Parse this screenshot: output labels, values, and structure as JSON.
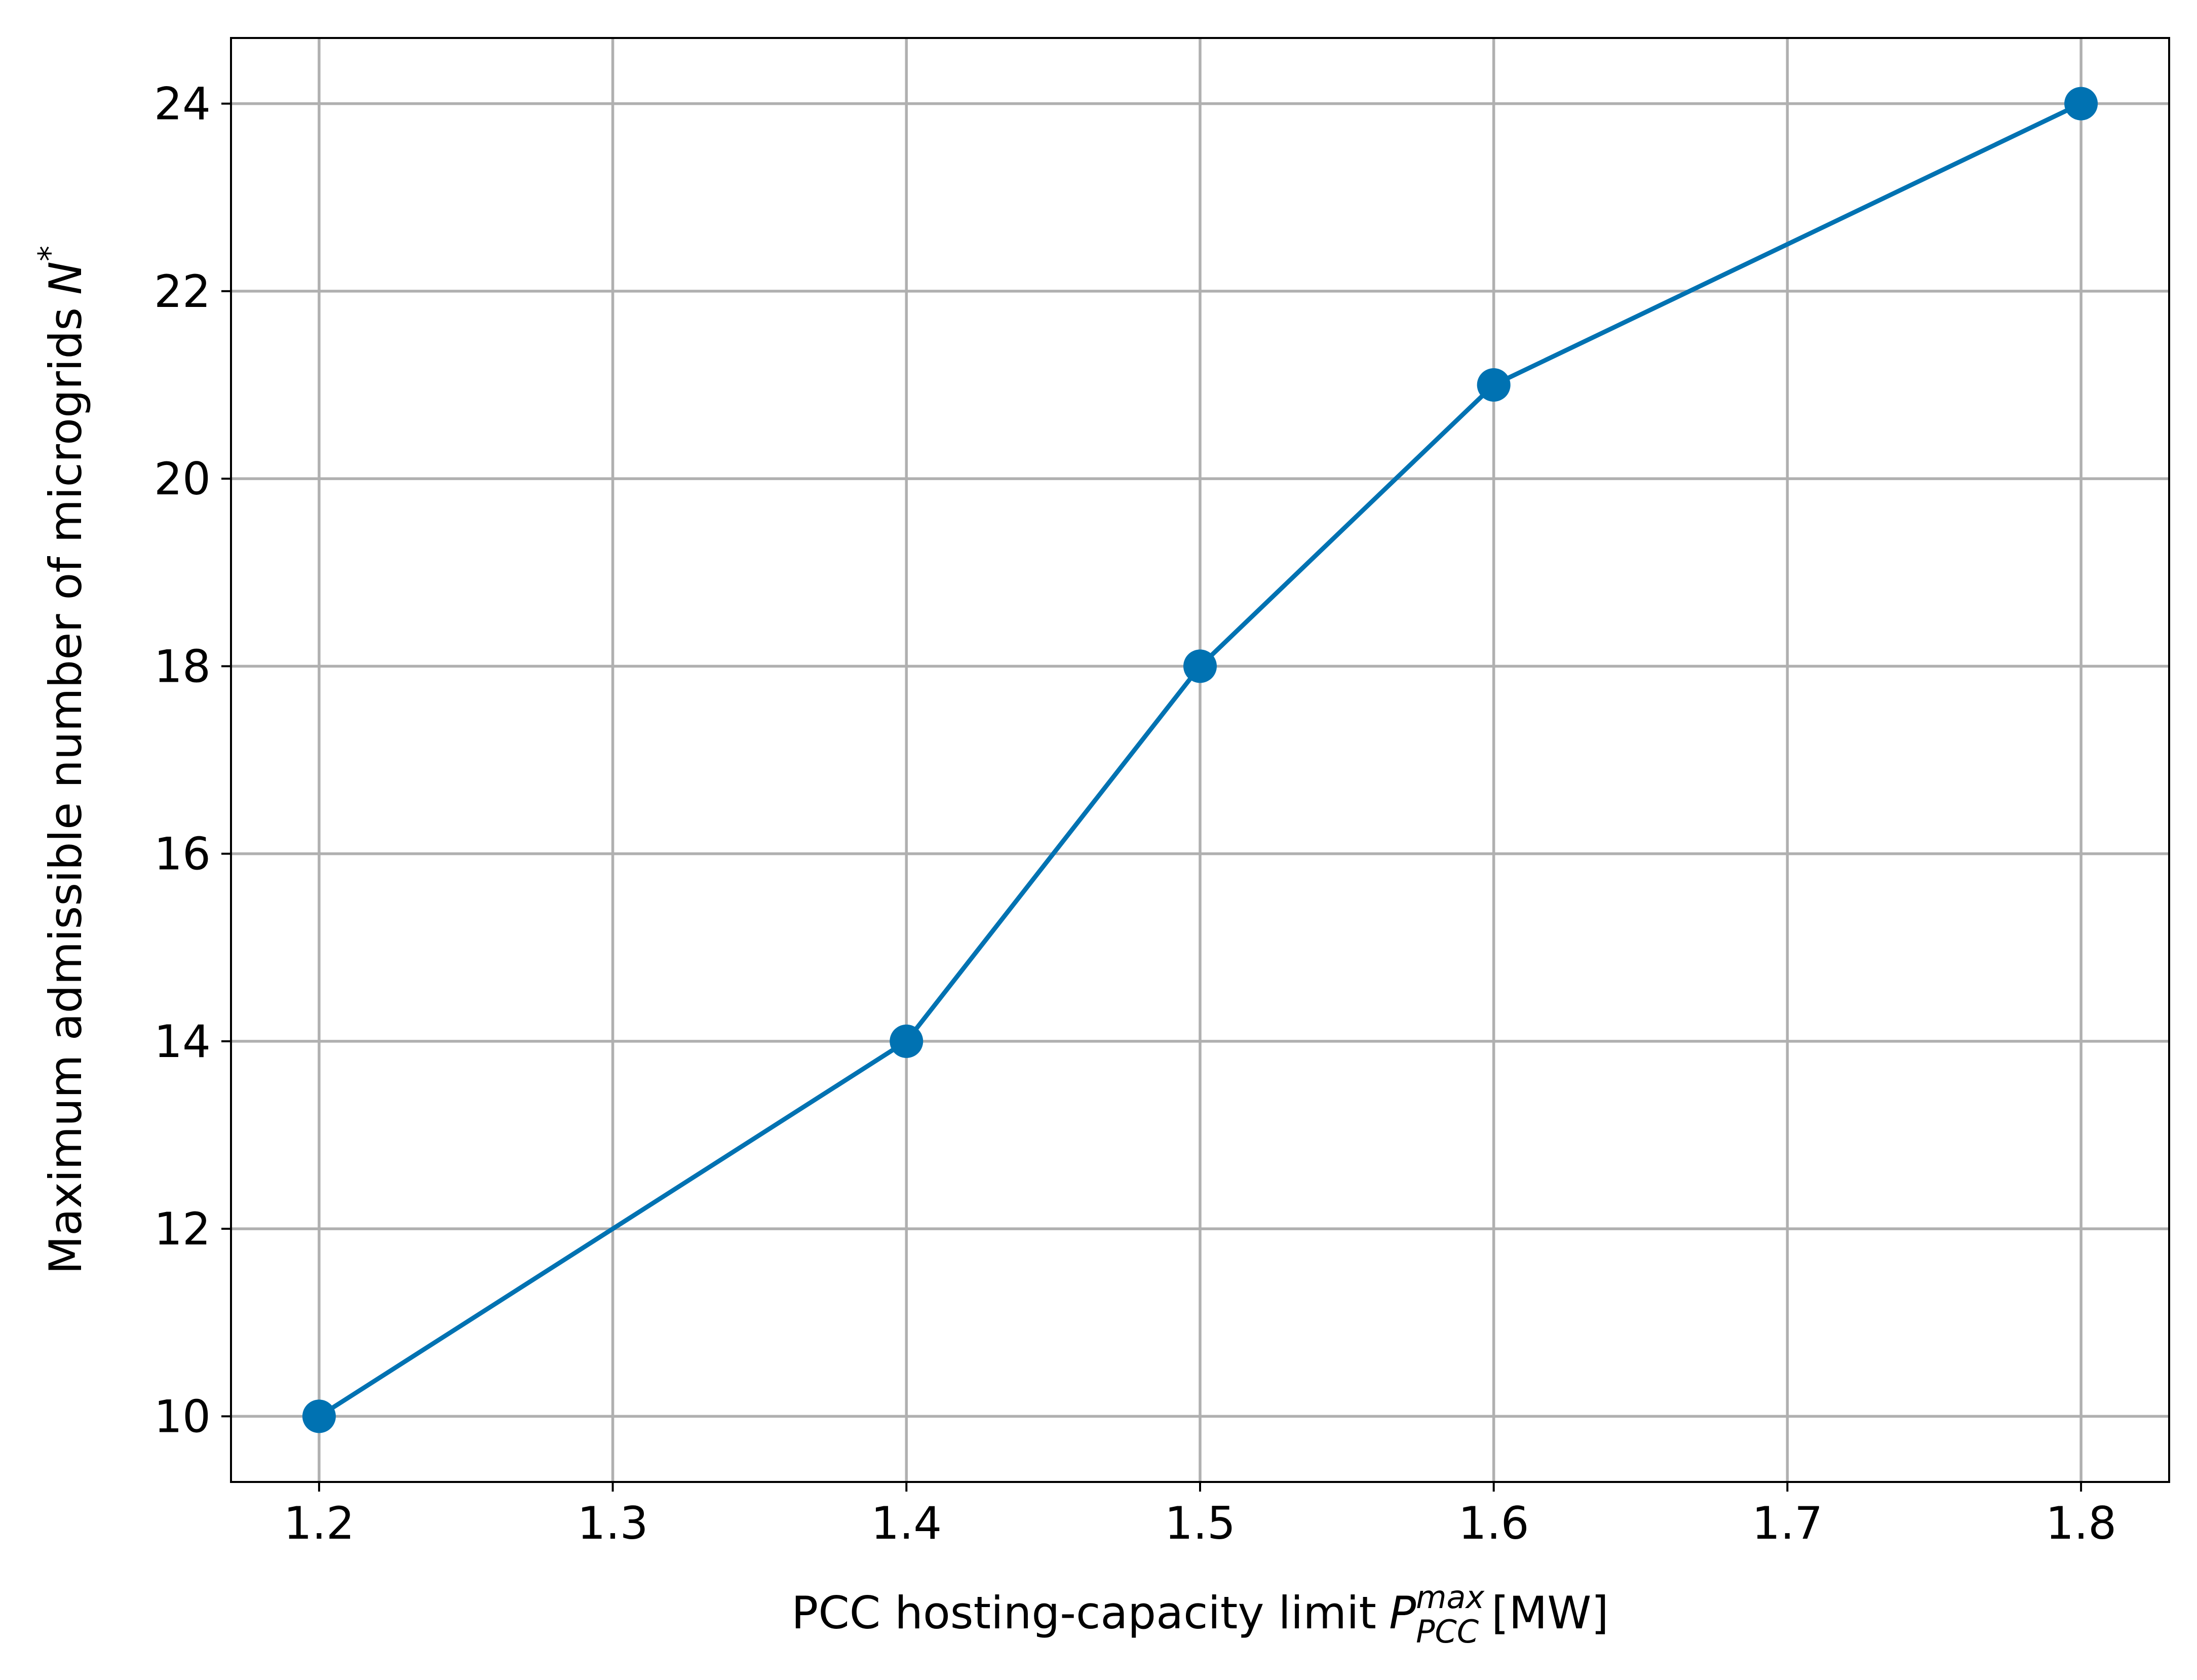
{
  "chart_data": {
    "type": "line",
    "xlabel": {
      "text": "PCC hosting-capacity limit",
      "symbol": "P",
      "superscript": "max",
      "subscript": "PCC",
      "unit": "[MW]"
    },
    "ylabel": {
      "text": "Maximum admissible number of microgrids",
      "symbol": "N",
      "superscript": "*"
    },
    "x": [
      1.2,
      1.4,
      1.5,
      1.6,
      1.8
    ],
    "series": [
      {
        "color": "#0072b2",
        "values": [
          10,
          14,
          18,
          21,
          24
        ]
      }
    ],
    "xlim": [
      1.17,
      1.83
    ],
    "xticks": [
      1.2,
      1.3,
      1.4,
      1.5,
      1.6,
      1.7,
      1.8
    ],
    "ylim": [
      9.3,
      24.7
    ],
    "yticks": [
      10,
      12,
      14,
      16,
      18,
      20,
      22,
      24
    ],
    "grid": true
  }
}
